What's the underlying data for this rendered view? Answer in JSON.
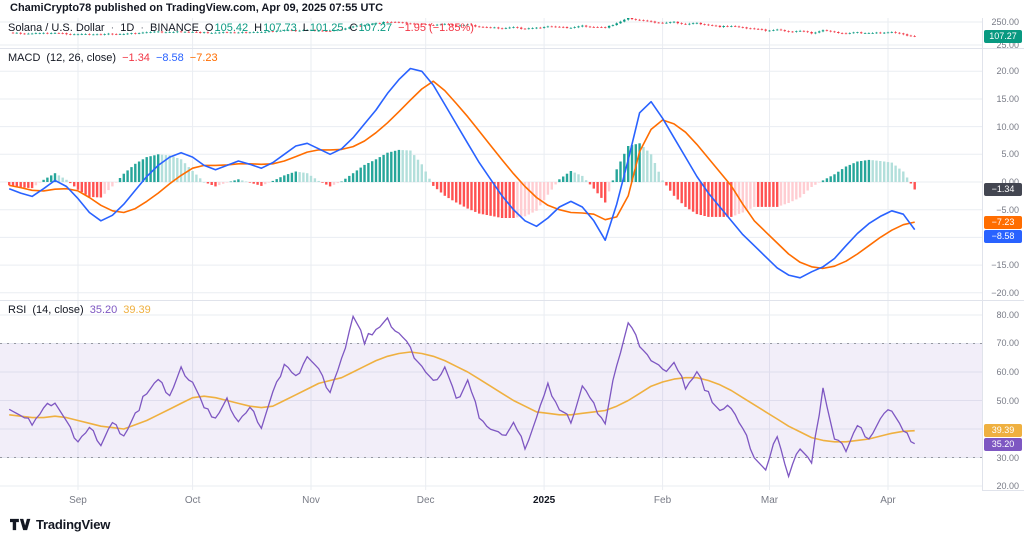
{
  "attribution": "ChamiCrypto78 published on TradingView.com, Apr 09, 2025 07:55 UTC",
  "logo": {
    "text": "TradingView"
  },
  "panes": {
    "price": {
      "title": "Solana / U.S. Dollar",
      "sep": "·",
      "interval": "1D",
      "exchange": "BINANCE",
      "o_label": "O",
      "o": "105.42",
      "h_label": "H",
      "h": "107.73",
      "l_label": "L",
      "l": "101.25",
      "c_label": "C",
      "c": "107.27",
      "change": "−1.95 (−1.85%)"
    },
    "macd": {
      "name": "MACD",
      "params": "(12, 26, close)",
      "hist": "−1.34",
      "macd": "−8.58",
      "signal": "−7.23"
    },
    "rsi": {
      "name": "RSI",
      "params": "(14, close)",
      "value": "35.20",
      "ma": "39.39"
    }
  },
  "colors": {
    "up": "#089981",
    "down": "#F23645",
    "change_down": "#F23645",
    "macd": "#2962FF",
    "signal": "#FF6D00",
    "hist_grow_above": "#26A69A",
    "hist_fall_above": "#B2DFDB",
    "hist_fall_below": "#FF5252",
    "hist_grow_below": "#FFCDD2",
    "hist_badge": "#434651",
    "hist_legend": "#F23645",
    "rsi": "#7E57C2",
    "rsi_ma": "#EFB040",
    "rsi_band": "rgba(126,87,194,0.10)",
    "rsi_levels": "#9598A1",
    "axis_text": "#787B86",
    "grid": "#EAEDF2",
    "separator": "#E0E3EB"
  },
  "chart_data": {
    "type": "line",
    "description": "TradingView multi-pane study: SOL/USD daily mini candlesticks, MACD(12,26,close) with histogram, RSI(14) with yellow MA; x axis Sep 2024 - Apr 2025",
    "x_start": 0,
    "x_step": 3,
    "x_count": 80,
    "time_ticks": [
      {
        "label": "Sep",
        "day": 18,
        "bold": false
      },
      {
        "label": "Oct",
        "day": 48,
        "bold": false
      },
      {
        "label": "Nov",
        "day": 79,
        "bold": false
      },
      {
        "label": "Dec",
        "day": 109,
        "bold": false
      },
      {
        "label": "2025",
        "day": 140,
        "bold": true
      },
      {
        "label": "Feb",
        "day": 171,
        "bold": false
      },
      {
        "label": "Mar",
        "day": 199,
        "bold": false
      },
      {
        "label": "Apr",
        "day": 230,
        "bold": false
      }
    ],
    "panes": [
      {
        "id": "price",
        "type": "candlestick",
        "ylim": [
          -4.4,
          289.1
        ],
        "ticks": [
          250,
          25
        ],
        "last_close": 107.27,
        "closes": [
          145,
          140,
          136,
          139,
          143,
          134,
          128,
          132,
          127,
          134,
          130,
          140,
          148,
          152,
          148,
          156,
          152,
          145,
          142,
          150,
          145,
          152,
          148,
          158,
          168,
          164,
          172,
          167,
          160,
          178,
          205,
          220,
          235,
          252,
          245,
          235,
          228,
          220,
          230,
          214,
          222,
          204,
          194,
          188,
          197,
          183,
          192,
          208,
          198,
          193,
          212,
          202,
          193,
          238,
          288,
          268,
          252,
          240,
          248,
          228,
          238,
          220,
          205,
          210,
          194,
          184,
          168,
          176,
          152,
          164,
          142,
          168,
          148,
          138,
          146,
          140,
          146,
          151,
          126,
          107.27
        ]
      },
      {
        "id": "macd",
        "type": "macd",
        "ylim": [
          -21.3,
          24.2
        ],
        "ticks": [
          20,
          15,
          10,
          5,
          0,
          -5,
          -10,
          -15,
          -20
        ],
        "last": {
          "hist": -1.34,
          "macd": -8.58,
          "signal": -7.23
        },
        "macd": [
          -1.2,
          -2.0,
          -2.6,
          -1.2,
          0.3,
          -0.8,
          -3.0,
          -5.5,
          -7.0,
          -6.0,
          -4.0,
          -1.5,
          1.0,
          3.0,
          4.5,
          5.3,
          4.5,
          3.0,
          2.2,
          3.0,
          3.8,
          3.2,
          2.5,
          3.5,
          5.0,
          6.5,
          7.0,
          6.0,
          5.0,
          6.0,
          8.0,
          10.5,
          13.0,
          16.0,
          18.5,
          20.5,
          20.0,
          17.5,
          14.0,
          10.5,
          7.0,
          3.5,
          0.5,
          -2.5,
          -5.0,
          -7.0,
          -8.0,
          -6.5,
          -4.5,
          -3.5,
          -4.5,
          -7.0,
          -10.5,
          -4.0,
          4.0,
          12.5,
          14.5,
          11.5,
          8.0,
          4.5,
          1.0,
          -2.0,
          -4.5,
          -7.0,
          -9.5,
          -11.5,
          -13.5,
          -15.5,
          -16.8,
          -17.3,
          -16.2,
          -15.3,
          -13.8,
          -11.5,
          -9.3,
          -7.5,
          -6.2,
          -5.2,
          -5.8,
          -8.58
        ],
        "signal": [
          -0.6,
          -1.0,
          -1.5,
          -1.6,
          -1.3,
          -1.2,
          -1.6,
          -2.8,
          -4.2,
          -5.2,
          -5.5,
          -4.8,
          -3.5,
          -2.0,
          -0.3,
          1.2,
          2.5,
          3.0,
          3.0,
          3.1,
          3.3,
          3.3,
          3.2,
          3.3,
          3.8,
          4.6,
          5.4,
          5.8,
          5.8,
          5.9,
          6.4,
          7.4,
          8.9,
          10.7,
          12.7,
          14.8,
          16.8,
          18.2,
          16.5,
          14.2,
          11.8,
          9.2,
          6.6,
          4.0,
          1.5,
          -0.8,
          -2.8,
          -4.2,
          -5.0,
          -5.5,
          -5.6,
          -5.8,
          -6.8,
          -6.3,
          -2.5,
          5.5,
          9.5,
          11.2,
          10.5,
          9.0,
          6.8,
          4.3,
          1.8,
          -0.7,
          -4.0,
          -7.0,
          -9.0,
          -11.0,
          -13.0,
          -14.5,
          -15.3,
          -15.6,
          -15.2,
          -14.3,
          -13.0,
          -11.5,
          -10.0,
          -8.7,
          -7.7,
          -7.23
        ]
      },
      {
        "id": "rsi",
        "type": "rsi",
        "ylim": [
          18.6,
          85.26
        ],
        "ticks": [
          80,
          70,
          60,
          50,
          40,
          30,
          20
        ],
        "band": [
          30,
          70
        ],
        "last": {
          "rsi": 35.2,
          "ma": 39.39
        },
        "rsi": [
          48,
          44,
          42,
          47,
          50,
          42,
          36,
          40,
          35,
          42,
          38,
          45,
          53,
          57,
          52,
          61,
          57,
          47,
          44,
          50,
          43,
          47,
          41,
          52,
          63,
          58,
          66,
          60,
          53,
          64,
          80,
          71,
          75,
          78,
          74,
          68,
          62,
          56,
          62,
          50,
          57,
          45,
          40,
          37,
          42,
          34,
          44,
          55,
          47,
          43,
          55,
          48,
          42,
          63,
          77,
          70,
          64,
          60,
          63,
          55,
          60,
          52,
          46,
          48,
          40,
          31,
          25,
          38,
          23,
          34,
          28,
          55,
          36,
          33,
          41,
          37,
          43,
          47,
          39,
          35.2
        ],
        "ma": [
          45,
          44.5,
          44,
          44,
          44.5,
          44,
          43,
          42,
          41,
          40.5,
          40,
          41.5,
          43,
          45,
          47,
          49,
          51,
          51.5,
          51,
          50,
          49,
          48,
          47.5,
          48,
          50,
          52,
          54,
          56,
          57,
          58,
          60,
          62,
          64,
          65.5,
          66.5,
          67,
          66.5,
          65.5,
          64,
          62,
          60,
          57.5,
          55,
          52.5,
          50,
          48,
          46,
          45.5,
          45,
          45,
          45.5,
          46,
          46.5,
          48,
          50,
          52.5,
          55,
          56.5,
          57.5,
          58,
          58,
          57,
          55.5,
          53.5,
          51,
          48.5,
          46,
          43.5,
          41,
          39,
          37,
          36,
          35.5,
          35.5,
          36,
          36.5,
          37.5,
          38.5,
          39.2,
          39.39
        ]
      }
    ]
  }
}
